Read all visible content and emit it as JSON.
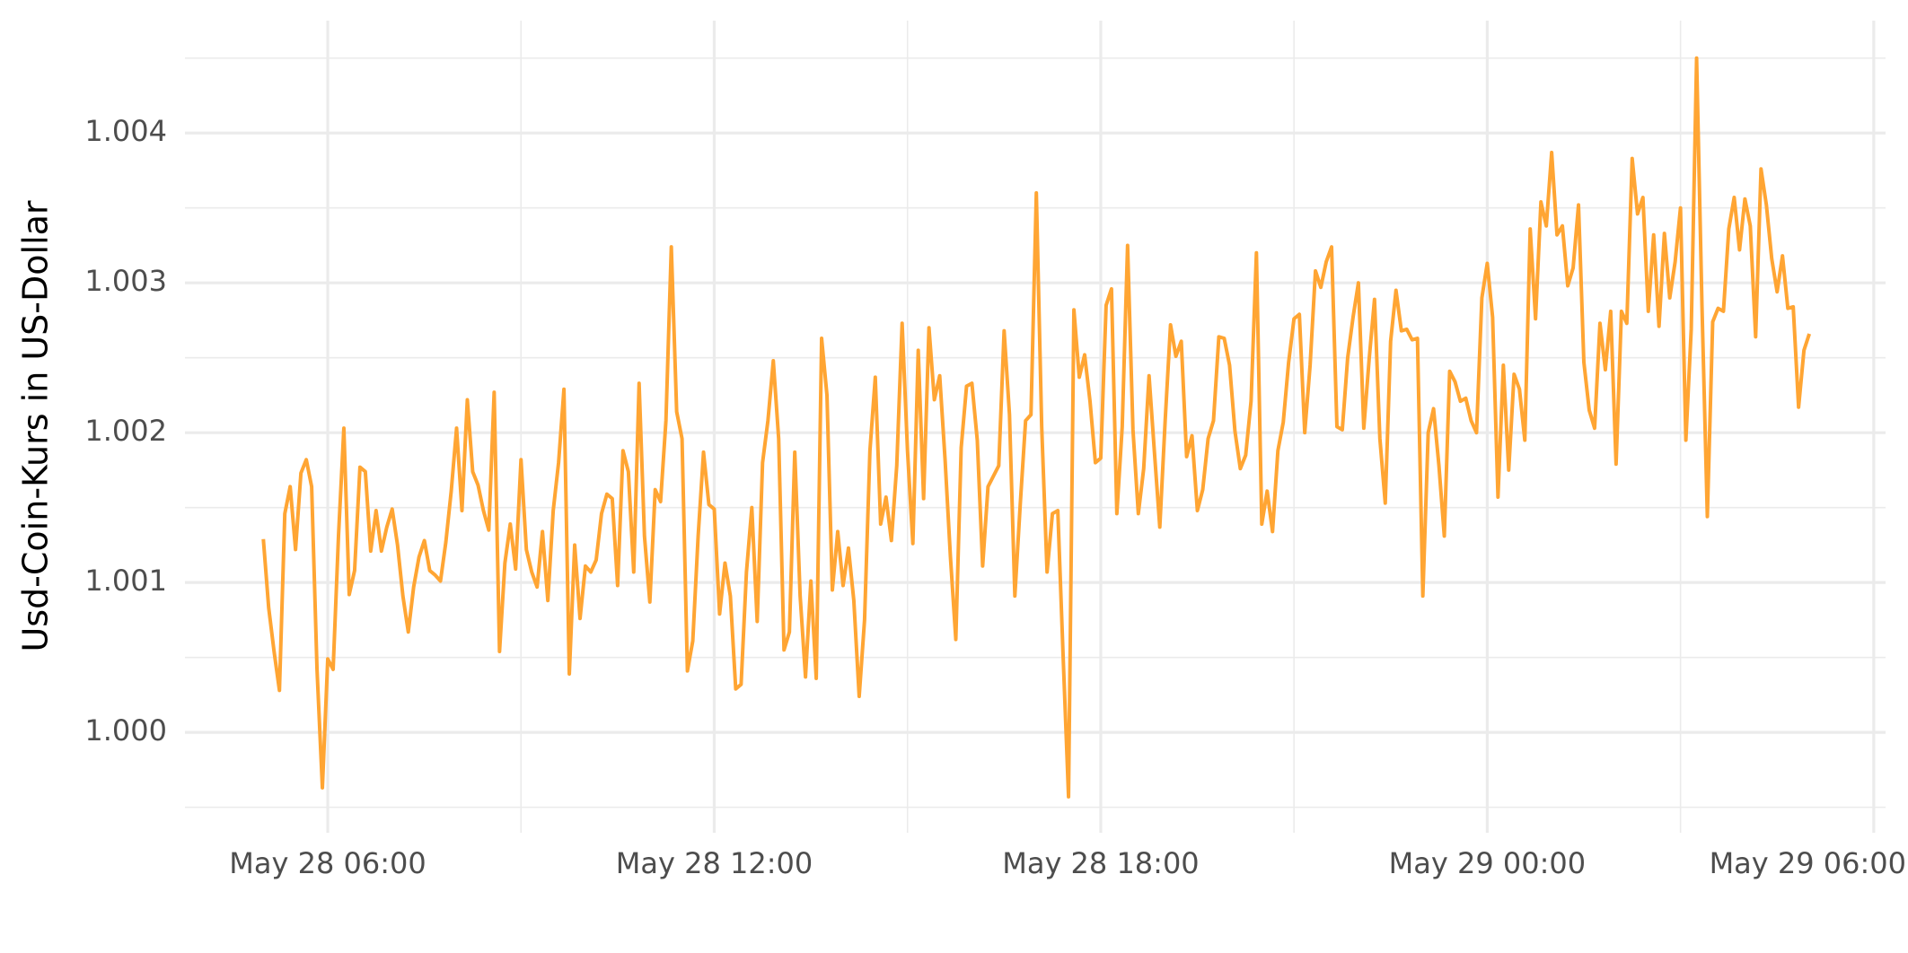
{
  "chart_data": {
    "type": "line",
    "ylabel": "Usd-Coin-Kurs in US-Dollar",
    "x": [
      "May 28 05:00",
      "May 28 05:05",
      "May 28 05:10",
      "May 28 05:15",
      "May 28 05:20",
      "May 28 05:25",
      "May 28 05:30",
      "May 28 05:35",
      "May 28 05:40",
      "May 28 05:45",
      "May 28 05:50",
      "May 28 05:55",
      "May 28 06:00",
      "May 28 06:05",
      "May 28 06:10",
      "May 28 06:15",
      "May 28 06:20",
      "May 28 06:25",
      "May 28 06:30",
      "May 28 06:35",
      "May 28 06:40",
      "May 28 06:45",
      "May 28 06:50",
      "May 28 06:55",
      "May 28 07:00",
      "May 28 07:05",
      "May 28 07:10",
      "May 28 07:15",
      "May 28 07:20",
      "May 28 07:25",
      "May 28 07:30",
      "May 28 07:35",
      "May 28 07:40",
      "May 28 07:45",
      "May 28 07:50",
      "May 28 07:55",
      "May 28 08:00",
      "May 28 08:05",
      "May 28 08:10",
      "May 28 08:15",
      "May 28 08:20",
      "May 28 08:25",
      "May 28 08:30",
      "May 28 08:35",
      "May 28 08:40",
      "May 28 08:45",
      "May 28 08:50",
      "May 28 08:55",
      "May 28 09:00",
      "May 28 09:05",
      "May 28 09:10",
      "May 28 09:15",
      "May 28 09:20",
      "May 28 09:25",
      "May 28 09:30",
      "May 28 09:35",
      "May 28 09:40",
      "May 28 09:45",
      "May 28 09:50",
      "May 28 09:55",
      "May 28 10:00",
      "May 28 10:05",
      "May 28 10:10",
      "May 28 10:15",
      "May 28 10:20",
      "May 28 10:25",
      "May 28 10:30",
      "May 28 10:35",
      "May 28 10:40",
      "May 28 10:45",
      "May 28 10:50",
      "May 28 10:55",
      "May 28 11:00",
      "May 28 11:05",
      "May 28 11:10",
      "May 28 11:15",
      "May 28 11:20",
      "May 28 11:25",
      "May 28 11:30",
      "May 28 11:35",
      "May 28 11:40",
      "May 28 11:45",
      "May 28 11:50",
      "May 28 11:55",
      "May 28 12:00",
      "May 28 12:05",
      "May 28 12:10",
      "May 28 12:15",
      "May 28 12:20",
      "May 28 12:25",
      "May 28 12:30",
      "May 28 12:35",
      "May 28 12:40",
      "May 28 12:45",
      "May 28 12:50",
      "May 28 12:55",
      "May 28 13:00",
      "May 28 13:05",
      "May 28 13:10",
      "May 28 13:15",
      "May 28 13:20",
      "May 28 13:25",
      "May 28 13:30",
      "May 28 13:35",
      "May 28 13:40",
      "May 28 13:45",
      "May 28 13:50",
      "May 28 13:55",
      "May 28 14:00",
      "May 28 14:05",
      "May 28 14:10",
      "May 28 14:15",
      "May 28 14:20",
      "May 28 14:25",
      "May 28 14:30",
      "May 28 14:35",
      "May 28 14:40",
      "May 28 14:45",
      "May 28 14:50",
      "May 28 14:55",
      "May 28 15:00",
      "May 28 15:05",
      "May 28 15:10",
      "May 28 15:15",
      "May 28 15:20",
      "May 28 15:25",
      "May 28 15:30",
      "May 28 15:35",
      "May 28 15:40",
      "May 28 15:45",
      "May 28 15:50",
      "May 28 15:55",
      "May 28 16:00",
      "May 28 16:05",
      "May 28 16:10",
      "May 28 16:15",
      "May 28 16:20",
      "May 28 16:25",
      "May 28 16:30",
      "May 28 16:35",
      "May 28 16:40",
      "May 28 16:45",
      "May 28 16:50",
      "May 28 16:55",
      "May 28 17:00",
      "May 28 17:05",
      "May 28 17:10",
      "May 28 17:15",
      "May 28 17:20",
      "May 28 17:25",
      "May 28 17:30",
      "May 28 17:35",
      "May 28 17:40",
      "May 28 17:45",
      "May 28 17:50",
      "May 28 17:55",
      "May 28 18:00",
      "May 28 18:05",
      "May 28 18:10",
      "May 28 18:15",
      "May 28 18:20",
      "May 28 18:25",
      "May 28 18:30",
      "May 28 18:35",
      "May 28 18:40",
      "May 28 18:45",
      "May 28 18:50",
      "May 28 18:55",
      "May 28 19:00",
      "May 28 19:05",
      "May 28 19:10",
      "May 28 19:15",
      "May 28 19:20",
      "May 28 19:25",
      "May 28 19:30",
      "May 28 19:35",
      "May 28 19:40",
      "May 28 19:45",
      "May 28 19:50",
      "May 28 19:55",
      "May 28 20:00",
      "May 28 20:05",
      "May 28 20:10",
      "May 28 20:15",
      "May 28 20:20",
      "May 28 20:25",
      "May 28 20:30",
      "May 28 20:35",
      "May 28 20:40",
      "May 28 20:45",
      "May 28 20:50",
      "May 28 20:55",
      "May 28 21:00",
      "May 28 21:05",
      "May 28 21:10",
      "May 28 21:15",
      "May 28 21:20",
      "May 28 21:25",
      "May 28 21:30",
      "May 28 21:35",
      "May 28 21:40",
      "May 28 21:45",
      "May 28 21:50",
      "May 28 21:55",
      "May 28 22:00",
      "May 28 22:05",
      "May 28 22:10",
      "May 28 22:15",
      "May 28 22:20",
      "May 28 22:25",
      "May 28 22:30",
      "May 28 22:35",
      "May 28 22:40",
      "May 28 22:45",
      "May 28 22:50",
      "May 28 22:55",
      "May 28 23:00",
      "May 28 23:05",
      "May 28 23:10",
      "May 28 23:15",
      "May 28 23:20",
      "May 28 23:25",
      "May 28 23:30",
      "May 28 23:35",
      "May 28 23:40",
      "May 28 23:45",
      "May 28 23:50",
      "May 28 23:55",
      "May 29 00:00",
      "May 29 00:05",
      "May 29 00:10",
      "May 29 00:15",
      "May 29 00:20",
      "May 29 00:25",
      "May 29 00:30",
      "May 29 00:35",
      "May 29 00:40",
      "May 29 00:45",
      "May 29 00:50",
      "May 29 00:55",
      "May 29 01:00",
      "May 29 01:05",
      "May 29 01:10",
      "May 29 01:15",
      "May 29 01:20",
      "May 29 01:25",
      "May 29 01:30",
      "May 29 01:35",
      "May 29 01:40",
      "May 29 01:45",
      "May 29 01:50",
      "May 29 01:55",
      "May 29 02:00",
      "May 29 02:05",
      "May 29 02:10",
      "May 29 02:15",
      "May 29 02:20",
      "May 29 02:25",
      "May 29 02:30",
      "May 29 02:35",
      "May 29 02:40",
      "May 29 02:45",
      "May 29 02:50",
      "May 29 02:55",
      "May 29 03:00",
      "May 29 03:05",
      "May 29 03:10",
      "May 29 03:15",
      "May 29 03:20",
      "May 29 03:25",
      "May 29 03:30",
      "May 29 03:35",
      "May 29 03:40",
      "May 29 03:45",
      "May 29 03:50",
      "May 29 03:55",
      "May 29 04:00",
      "May 29 04:05",
      "May 29 04:10",
      "May 29 04:15",
      "May 29 04:20",
      "May 29 04:25",
      "May 29 04:30",
      "May 29 04:35",
      "May 29 04:40",
      "May 29 04:45",
      "May 29 04:50",
      "May 29 04:55",
      "May 29 05:00"
    ],
    "series": [
      {
        "color": "#ffa533",
        "values": [
          1.00129,
          1.00083,
          1.00054,
          1.00028,
          1.00146,
          1.00164,
          1.00122,
          1.00173,
          1.00182,
          1.00164,
          1.00042,
          0.99963,
          1.00049,
          1.00042,
          1.00131,
          1.00203,
          1.00092,
          1.00108,
          1.00177,
          1.00174,
          1.00121,
          1.00148,
          1.00121,
          1.00137,
          1.00149,
          1.00125,
          1.00091,
          1.00067,
          1.00097,
          1.00117,
          1.00128,
          1.00108,
          1.00105,
          1.00101,
          1.00127,
          1.00161,
          1.00203,
          1.00148,
          1.00222,
          1.00174,
          1.00165,
          1.00148,
          1.00135,
          1.00227,
          1.00054,
          1.00113,
          1.00139,
          1.00109,
          1.00182,
          1.00122,
          1.00107,
          1.00097,
          1.00134,
          1.00088,
          1.00148,
          1.0018,
          1.00229,
          1.00039,
          1.00125,
          1.00076,
          1.00111,
          1.00107,
          1.00115,
          1.00146,
          1.00159,
          1.00156,
          1.00098,
          1.00188,
          1.00174,
          1.00107,
          1.00233,
          1.00131,
          1.00087,
          1.00162,
          1.00154,
          1.00208,
          1.00324,
          1.00214,
          1.00196,
          1.00041,
          1.00061,
          1.00131,
          1.00187,
          1.00152,
          1.00149,
          1.00079,
          1.00113,
          1.00091,
          1.00029,
          1.00032,
          1.00107,
          1.0015,
          1.00074,
          1.0018,
          1.00208,
          1.00248,
          1.00196,
          1.00055,
          1.00067,
          1.00187,
          1.00091,
          1.00037,
          1.00101,
          1.00036,
          1.00263,
          1.00225,
          1.00095,
          1.00134,
          1.00098,
          1.00123,
          1.00088,
          1.00024,
          1.00075,
          1.00188,
          1.00237,
          1.00139,
          1.00157,
          1.00128,
          1.00178,
          1.00273,
          1.00188,
          1.00126,
          1.00255,
          1.00156,
          1.0027,
          1.00222,
          1.00238,
          1.00182,
          1.00117,
          1.00062,
          1.0019,
          1.00231,
          1.00233,
          1.00195,
          1.00111,
          1.00164,
          1.00171,
          1.00178,
          1.00268,
          1.00212,
          1.00091,
          1.00152,
          1.00208,
          1.00212,
          1.0036,
          1.00204,
          1.00107,
          1.00146,
          1.00148,
          1.0005,
          0.99957,
          1.00282,
          1.00237,
          1.00252,
          1.00221,
          1.0018,
          1.00183,
          1.00285,
          1.00296,
          1.00146,
          1.00204,
          1.00325,
          1.00202,
          1.00146,
          1.00176,
          1.00238,
          1.00187,
          1.00137,
          1.00208,
          1.00272,
          1.00251,
          1.00261,
          1.00184,
          1.00198,
          1.00148,
          1.00162,
          1.00196,
          1.00208,
          1.00264,
          1.00263,
          1.00245,
          1.00201,
          1.00176,
          1.00185,
          1.00221,
          1.0032,
          1.00139,
          1.00161,
          1.00134,
          1.00188,
          1.00207,
          1.00247,
          1.00276,
          1.00279,
          1.002,
          1.00245,
          1.00308,
          1.00297,
          1.00314,
          1.00324,
          1.00204,
          1.00202,
          1.0025,
          1.00277,
          1.003,
          1.00203,
          1.00249,
          1.00289,
          1.00196,
          1.00153,
          1.00261,
          1.00295,
          1.00268,
          1.00269,
          1.00262,
          1.00263,
          1.00091,
          1.002,
          1.00216,
          1.00178,
          1.00131,
          1.00241,
          1.00234,
          1.00221,
          1.00223,
          1.00208,
          1.002,
          1.0029,
          1.00313,
          1.00277,
          1.00157,
          1.00245,
          1.00175,
          1.00239,
          1.00229,
          1.00195,
          1.00336,
          1.00276,
          1.00354,
          1.00338,
          1.00387,
          1.00332,
          1.00338,
          1.00298,
          1.0031,
          1.00352,
          1.00247,
          1.00215,
          1.00203,
          1.00273,
          1.00242,
          1.00281,
          1.00179,
          1.00281,
          1.00273,
          1.00383,
          1.00346,
          1.00357,
          1.00281,
          1.00332,
          1.00271,
          1.00333,
          1.0029,
          1.00314,
          1.0035,
          1.00195,
          1.00269,
          1.0045,
          1.00285,
          1.00144,
          1.00274,
          1.00283,
          1.00281,
          1.00336,
          1.00357,
          1.00322,
          1.00356,
          1.00338,
          1.00264,
          1.00376,
          1.00352,
          1.00316,
          1.00294,
          1.00318,
          1.00283,
          1.00284,
          1.00217,
          1.00255,
          1.00266
        ]
      }
    ],
    "xlim": [
      "May 28 03:47",
      "May 29 06:11"
    ],
    "xticks": [
      "May 28 06:00",
      "May 28 12:00",
      "May 28 18:00",
      "May 29 00:00",
      "May 29 06:00"
    ],
    "x_minor_grid": [
      "May 28 09:00",
      "May 28 15:00",
      "May 28 21:00",
      "May 29 03:00"
    ],
    "ylim": [
      0.99933,
      1.00475
    ],
    "yticks": [
      {
        "value": 1,
        "label": "1.000"
      },
      {
        "value": 1.001,
        "label": "1.001"
      },
      {
        "value": 1.002,
        "label": "1.002"
      },
      {
        "value": 1.003,
        "label": "1.003"
      },
      {
        "value": 1.004,
        "label": "1.004"
      }
    ],
    "y_minor_grid": [
      0.9995,
      1.0005,
      1.0015,
      1.0025,
      1.0035,
      1.0045
    ],
    "grid": true
  }
}
